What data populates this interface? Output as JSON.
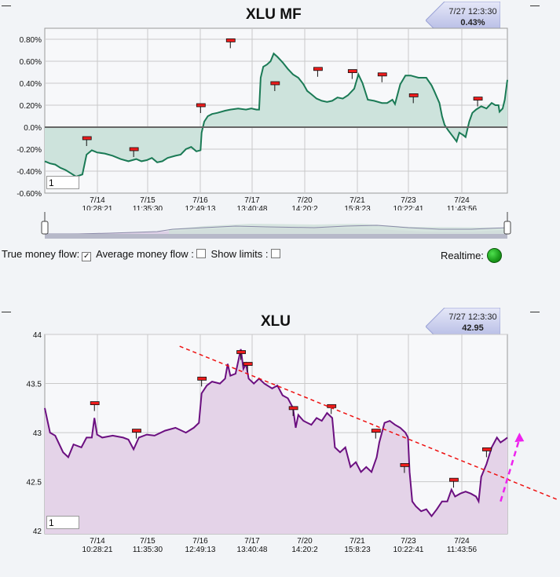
{
  "mf_panel": {
    "title": "XLU MF",
    "flag_time": "7/27 12:3:30",
    "flag_value": "0.43%",
    "range_input": "1"
  },
  "price_panel": {
    "title": "XLU",
    "flag_time": "7/27 12:3:30",
    "flag_value": "42.95",
    "range_input": "1"
  },
  "controls": {
    "true_money_flow": "True money flow:",
    "average_money_flow": "Average money flow :",
    "show_limits": "Show limits :",
    "realtime": "Realtime:"
  },
  "colors": {
    "mf_line": "#1a7a55",
    "mf_fill": "#cde3dc",
    "price_line": "#6b0f80",
    "price_fill": "#e4d3e8",
    "trendline": "#ee1111",
    "projection_arrow": "#ee22ee",
    "realtime_led": "#22bb22"
  },
  "chart_data": [
    {
      "type": "area",
      "title": "XLU MF",
      "x_tick_labels": [
        [
          "7/14",
          "10:28:21"
        ],
        [
          "7/15",
          "11:35:30"
        ],
        [
          "7/16",
          "12:49:13"
        ],
        [
          "7/17",
          "13:40:48"
        ],
        [
          "7/20",
          "14:20:2"
        ],
        [
          "7/21",
          "15:8:23"
        ],
        [
          "7/23",
          "10:22:41"
        ],
        [
          "7/24",
          "11:43:56"
        ]
      ],
      "y_tick_labels": [
        "0.80%",
        "0.60%",
        "0.40%",
        "0.20%",
        "0.0%",
        "-0.20%",
        "-0.40%",
        "-0.60%"
      ],
      "ylim": [
        -0.6,
        0.9
      ],
      "xlim": [
        0,
        8.85
      ],
      "y_unit": "%",
      "baseline": 0,
      "series": [
        {
          "points": [
            [
              0,
              -0.31
            ],
            [
              0.1,
              -0.33
            ],
            [
              0.2,
              -0.34
            ],
            [
              0.3,
              -0.37
            ],
            [
              0.4,
              -0.39
            ],
            [
              0.5,
              -0.42
            ],
            [
              0.6,
              -0.45
            ],
            [
              0.72,
              -0.43
            ],
            [
              0.8,
              -0.25
            ],
            [
              0.9,
              -0.21
            ],
            [
              1.0,
              -0.23
            ],
            [
              1.15,
              -0.24
            ],
            [
              1.3,
              -0.26
            ],
            [
              1.45,
              -0.29
            ],
            [
              1.6,
              -0.31
            ],
            [
              1.75,
              -0.29
            ],
            [
              1.85,
              -0.31
            ],
            [
              1.95,
              -0.3
            ],
            [
              2.05,
              -0.28
            ],
            [
              2.15,
              -0.32
            ],
            [
              2.25,
              -0.31
            ],
            [
              2.35,
              -0.28
            ],
            [
              2.5,
              -0.26
            ],
            [
              2.6,
              -0.25
            ],
            [
              2.7,
              -0.2
            ],
            [
              2.8,
              -0.18
            ],
            [
              2.9,
              -0.22
            ],
            [
              2.98,
              -0.21
            ],
            [
              3.0,
              -0.05
            ],
            [
              3.05,
              0.05
            ],
            [
              3.12,
              0.1
            ],
            [
              3.2,
              0.12
            ],
            [
              3.3,
              0.13
            ],
            [
              3.45,
              0.15
            ],
            [
              3.55,
              0.16
            ],
            [
              3.7,
              0.17
            ],
            [
              3.85,
              0.16
            ],
            [
              3.95,
              0.17
            ],
            [
              4.05,
              0.16
            ],
            [
              4.1,
              0.16
            ],
            [
              4.13,
              0.45
            ],
            [
              4.18,
              0.55
            ],
            [
              4.25,
              0.57
            ],
            [
              4.32,
              0.6
            ],
            [
              4.38,
              0.67
            ],
            [
              4.45,
              0.64
            ],
            [
              4.55,
              0.59
            ],
            [
              4.65,
              0.53
            ],
            [
              4.75,
              0.48
            ],
            [
              4.85,
              0.45
            ],
            [
              4.95,
              0.39
            ],
            [
              5.02,
              0.33
            ],
            [
              5.1,
              0.3
            ],
            [
              5.2,
              0.26
            ],
            [
              5.3,
              0.24
            ],
            [
              5.4,
              0.23
            ],
            [
              5.5,
              0.24
            ],
            [
              5.6,
              0.27
            ],
            [
              5.7,
              0.26
            ],
            [
              5.8,
              0.29
            ],
            [
              5.92,
              0.35
            ],
            [
              6.0,
              0.48
            ],
            [
              6.08,
              0.4
            ],
            [
              6.18,
              0.25
            ],
            [
              6.3,
              0.24
            ],
            [
              6.45,
              0.22
            ],
            [
              6.55,
              0.22
            ],
            [
              6.65,
              0.25
            ],
            [
              6.7,
              0.21
            ],
            [
              6.8,
              0.39
            ],
            [
              6.9,
              0.47
            ],
            [
              7.0,
              0.47
            ],
            [
              7.15,
              0.45
            ],
            [
              7.3,
              0.45
            ],
            [
              7.4,
              0.38
            ],
            [
              7.45,
              0.33
            ],
            [
              7.55,
              0.22
            ],
            [
              7.6,
              0.1
            ],
            [
              7.65,
              0.02
            ],
            [
              7.72,
              -0.03
            ],
            [
              7.8,
              -0.08
            ],
            [
              7.88,
              -0.13
            ],
            [
              7.93,
              -0.05
            ],
            [
              8.0,
              -0.07
            ],
            [
              8.05,
              -0.09
            ],
            [
              8.12,
              0.05
            ],
            [
              8.18,
              0.13
            ],
            [
              8.25,
              0.16
            ],
            [
              8.35,
              0.19
            ],
            [
              8.45,
              0.17
            ],
            [
              8.55,
              0.22
            ],
            [
              8.62,
              0.2
            ],
            [
              8.68,
              0.2
            ],
            [
              8.7,
              0.14
            ],
            [
              8.76,
              0.17
            ],
            [
              8.8,
              0.25
            ],
            [
              8.85,
              0.43
            ]
          ]
        }
      ],
      "markers": [
        [
          0.8,
          -0.1
        ],
        [
          1.7,
          -0.2
        ],
        [
          2.98,
          0.2
        ],
        [
          3.55,
          0.79
        ],
        [
          4.4,
          0.4
        ],
        [
          5.22,
          0.53
        ],
        [
          5.88,
          0.51
        ],
        [
          6.45,
          0.48
        ],
        [
          7.05,
          0.29
        ],
        [
          8.28,
          0.26
        ]
      ]
    },
    {
      "type": "area",
      "title": "XLU",
      "x_tick_labels": [
        [
          "7/14",
          "10:28:21"
        ],
        [
          "7/15",
          "11:35:30"
        ],
        [
          "7/16",
          "12:49:13"
        ],
        [
          "7/17",
          "13:40:48"
        ],
        [
          "7/20",
          "14:20:2"
        ],
        [
          "7/21",
          "15:8:23"
        ],
        [
          "7/23",
          "10:22:41"
        ],
        [
          "7/24",
          "11:43:56"
        ]
      ],
      "y_tick_labels": [
        "44",
        "43.5",
        "43",
        "42.5",
        "42"
      ],
      "ylim": [
        41.97,
        44
      ],
      "xlim": [
        0,
        8.85
      ],
      "series": [
        {
          "points": [
            [
              0,
              43.25
            ],
            [
              0.1,
              43.0
            ],
            [
              0.2,
              42.97
            ],
            [
              0.35,
              42.8
            ],
            [
              0.45,
              42.75
            ],
            [
              0.55,
              42.88
            ],
            [
              0.7,
              42.85
            ],
            [
              0.8,
              42.95
            ],
            [
              0.9,
              42.95
            ],
            [
              0.95,
              43.15
            ],
            [
              1.0,
              42.98
            ],
            [
              1.1,
              42.95
            ],
            [
              1.3,
              42.97
            ],
            [
              1.5,
              42.95
            ],
            [
              1.6,
              42.93
            ],
            [
              1.7,
              42.83
            ],
            [
              1.8,
              42.95
            ],
            [
              1.95,
              42.98
            ],
            [
              2.1,
              42.97
            ],
            [
              2.3,
              43.02
            ],
            [
              2.5,
              43.05
            ],
            [
              2.7,
              43.0
            ],
            [
              2.85,
              43.05
            ],
            [
              2.95,
              43.1
            ],
            [
              3.0,
              43.4
            ],
            [
              3.1,
              43.48
            ],
            [
              3.2,
              43.52
            ],
            [
              3.35,
              43.5
            ],
            [
              3.45,
              43.55
            ],
            [
              3.5,
              43.7
            ],
            [
              3.55,
              43.58
            ],
            [
              3.65,
              43.6
            ],
            [
              3.75,
              43.85
            ],
            [
              3.8,
              43.65
            ],
            [
              3.85,
              43.7
            ],
            [
              3.9,
              43.55
            ],
            [
              4.0,
              43.5
            ],
            [
              4.1,
              43.55
            ],
            [
              4.2,
              43.5
            ],
            [
              4.35,
              43.45
            ],
            [
              4.45,
              43.48
            ],
            [
              4.55,
              43.38
            ],
            [
              4.65,
              43.35
            ],
            [
              4.75,
              43.25
            ],
            [
              4.8,
              43.05
            ],
            [
              4.85,
              43.18
            ],
            [
              4.95,
              43.12
            ],
            [
              5.1,
              43.08
            ],
            [
              5.2,
              43.15
            ],
            [
              5.3,
              43.12
            ],
            [
              5.4,
              43.2
            ],
            [
              5.5,
              43.15
            ],
            [
              5.55,
              42.85
            ],
            [
              5.65,
              42.8
            ],
            [
              5.75,
              42.85
            ],
            [
              5.85,
              42.65
            ],
            [
              5.95,
              42.7
            ],
            [
              6.05,
              42.6
            ],
            [
              6.15,
              42.65
            ],
            [
              6.25,
              42.6
            ],
            [
              6.35,
              42.75
            ],
            [
              6.4,
              42.9
            ],
            [
              6.5,
              43.1
            ],
            [
              6.6,
              43.12
            ],
            [
              6.7,
              43.08
            ],
            [
              6.8,
              43.05
            ],
            [
              6.9,
              43.0
            ],
            [
              6.95,
              42.95
            ],
            [
              6.98,
              42.6
            ],
            [
              7.03,
              42.3
            ],
            [
              7.1,
              42.25
            ],
            [
              7.2,
              42.2
            ],
            [
              7.3,
              42.22
            ],
            [
              7.4,
              42.15
            ],
            [
              7.5,
              42.22
            ],
            [
              7.6,
              42.3
            ],
            [
              7.7,
              42.3
            ],
            [
              7.78,
              42.42
            ],
            [
              7.85,
              42.35
            ],
            [
              7.95,
              42.38
            ],
            [
              8.05,
              42.4
            ],
            [
              8.15,
              42.38
            ],
            [
              8.25,
              42.35
            ],
            [
              8.3,
              42.3
            ],
            [
              8.35,
              42.55
            ],
            [
              8.45,
              42.68
            ],
            [
              8.55,
              42.85
            ],
            [
              8.65,
              42.95
            ],
            [
              8.72,
              42.9
            ],
            [
              8.8,
              42.93
            ],
            [
              8.85,
              42.95
            ]
          ]
        }
      ],
      "markers": [
        [
          0.95,
          43.3
        ],
        [
          1.75,
          43.02
        ],
        [
          3.0,
          43.55
        ],
        [
          3.75,
          43.82
        ],
        [
          3.88,
          43.7
        ],
        [
          4.75,
          43.25
        ],
        [
          5.48,
          43.27
        ],
        [
          6.33,
          43.02
        ],
        [
          6.88,
          42.67
        ],
        [
          7.82,
          42.52
        ],
        [
          8.45,
          42.83
        ]
      ],
      "annotations": [
        {
          "kind": "trendline",
          "from": [
            2.58,
            43.88
          ],
          "to": [
            9.8,
            42.32
          ]
        },
        {
          "kind": "projection-arrow",
          "from": [
            8.72,
            42.3
          ],
          "to": [
            9.08,
            43.0
          ]
        }
      ]
    }
  ]
}
